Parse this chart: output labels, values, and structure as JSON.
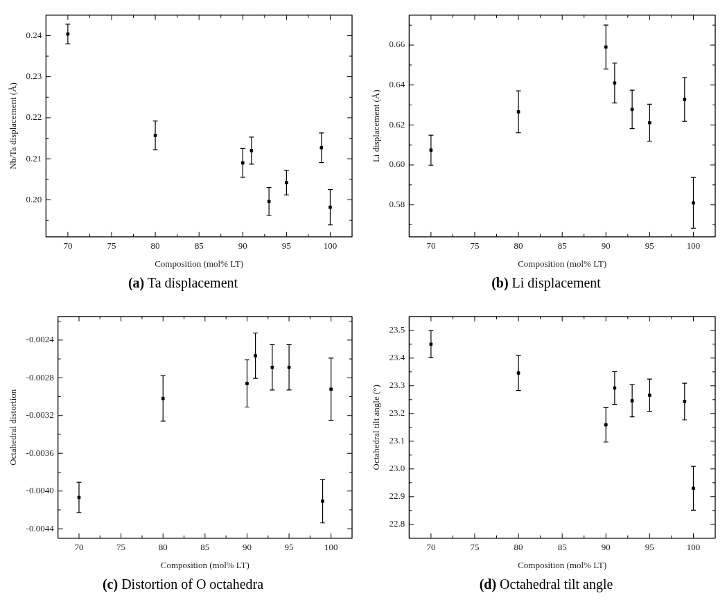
{
  "chart_data": [
    {
      "type": "scatter",
      "title": "(a) Ta displacement",
      "xlabel": "Composition (mol% LT)",
      "ylabel": "Nb/Ta displacement (Å)",
      "marker": "square",
      "x": [
        70,
        80,
        90,
        91,
        93,
        95,
        99,
        100
      ],
      "series": [
        {
          "color": "#000000",
          "values": [
            0.2404,
            0.2157,
            0.209,
            0.212,
            0.1996,
            0.2042,
            0.2127,
            0.1982
          ],
          "errors": [
            0.0024,
            0.0035,
            0.0035,
            0.0033,
            0.0034,
            0.003,
            0.0036,
            0.0043
          ]
        }
      ],
      "xlim": [
        67.5,
        102.5
      ],
      "xticks": [
        70,
        {
          "value": 72.5,
          "label": null
        },
        75,
        {
          "value": 77.5,
          "label": null
        },
        80,
        {
          "value": 82.5,
          "label": null
        },
        85,
        {
          "value": 87.5,
          "label": null
        },
        90,
        {
          "value": 92.5,
          "label": null
        },
        95,
        {
          "value": 97.5,
          "label": null
        },
        100
      ],
      "ylim": [
        0.191,
        0.245
      ],
      "yticks": [
        {
          "value": 0.195,
          "label": null
        },
        {
          "value": 0.2,
          "label": "0.20"
        },
        {
          "value": 0.205,
          "label": null
        },
        0.21,
        {
          "value": 0.215,
          "label": null
        },
        0.22,
        {
          "value": 0.225,
          "label": null
        },
        0.23,
        {
          "value": 0.235,
          "label": null
        },
        0.24
      ]
    },
    {
      "type": "scatter",
      "title": "(b) Li displacement",
      "xlabel": "Composition (mol% LT)",
      "ylabel": "Li displacement (Å)",
      "marker": "square",
      "x": [
        70,
        80,
        90,
        91,
        93,
        95,
        99,
        100
      ],
      "series": [
        {
          "color": "#000000",
          "values": [
            0.6074,
            0.6266,
            0.659,
            0.641,
            0.6278,
            0.6211,
            0.6328,
            0.581
          ],
          "errors": [
            0.0075,
            0.0105,
            0.011,
            0.01,
            0.0096,
            0.0093,
            0.011,
            0.0127
          ]
        }
      ],
      "xlim": [
        67.5,
        102.5
      ],
      "xticks": [
        70,
        {
          "value": 72.5,
          "label": null
        },
        75,
        {
          "value": 77.5,
          "label": null
        },
        80,
        {
          "value": 82.5,
          "label": null
        },
        85,
        {
          "value": 87.5,
          "label": null
        },
        90,
        {
          "value": 92.5,
          "label": null
        },
        95,
        {
          "value": 97.5,
          "label": null
        },
        100
      ],
      "ylim": [
        0.564,
        0.675
      ],
      "yticks": [
        {
          "value": 0.57,
          "label": null
        },
        0.58,
        {
          "value": 0.59,
          "label": null
        },
        {
          "value": 0.6,
          "label": "0.60"
        },
        {
          "value": 0.61,
          "label": null
        },
        0.62,
        {
          "value": 0.63,
          "label": null
        },
        0.64,
        {
          "value": 0.65,
          "label": null
        },
        0.66,
        {
          "value": 0.67,
          "label": null
        }
      ]
    },
    {
      "type": "scatter",
      "title": "(c) Distortion of O octahedra",
      "xlabel": "Composition (mol% LT)",
      "ylabel": "Octahedral distortion",
      "marker": "square",
      "x": [
        70,
        80,
        90,
        91,
        93,
        95,
        99,
        100
      ],
      "series": [
        {
          "color": "#000000",
          "values": [
            -0.004068,
            -0.003019,
            -0.00286,
            -0.002566,
            -0.002689,
            -0.002689,
            -0.004108,
            -0.002921
          ],
          "errors": [
            0.00016,
            0.00024,
            0.00025,
            0.00024,
            0.00024,
            0.00024,
            0.00023,
            0.00033
          ]
        }
      ],
      "xlim": [
        67.5,
        102.5
      ],
      "xticks": [
        70,
        {
          "value": 72.5,
          "label": null
        },
        75,
        {
          "value": 77.5,
          "label": null
        },
        80,
        {
          "value": 82.5,
          "label": null
        },
        85,
        {
          "value": 87.5,
          "label": null
        },
        90,
        {
          "value": 92.5,
          "label": null
        },
        95,
        {
          "value": 97.5,
          "label": null
        },
        100
      ],
      "ylim": [
        -0.0045,
        -0.00215
      ],
      "yticks": [
        -0.0044,
        {
          "value": -0.0042,
          "label": null
        },
        {
          "value": -0.004,
          "label": "-0.0040"
        },
        {
          "value": -0.0038,
          "label": null
        },
        -0.0036,
        {
          "value": -0.0034,
          "label": null
        },
        -0.0032,
        {
          "value": -0.003,
          "label": null
        },
        -0.0028,
        {
          "value": -0.0026,
          "label": null
        },
        -0.0024,
        {
          "value": -0.0022,
          "label": null
        }
      ]
    },
    {
      "type": "scatter",
      "title": "(d) Octahedral tilt angle",
      "xlabel": "Composition (mol% LT)",
      "ylabel": "Octahedral tilt angle (°)",
      "marker": "square",
      "x": [
        70,
        80,
        90,
        91,
        93,
        95,
        99,
        100
      ],
      "series": [
        {
          "color": "#000000",
          "values": [
            23.45,
            23.346,
            23.159,
            23.292,
            23.246,
            23.266,
            23.243,
            22.93
          ],
          "errors": [
            0.049,
            0.063,
            0.062,
            0.059,
            0.058,
            0.058,
            0.066,
            0.079
          ]
        }
      ],
      "xlim": [
        67.5,
        102.5
      ],
      "xticks": [
        70,
        {
          "value": 72.5,
          "label": null
        },
        75,
        {
          "value": 77.5,
          "label": null
        },
        80,
        {
          "value": 82.5,
          "label": null
        },
        85,
        {
          "value": 87.5,
          "label": null
        },
        90,
        {
          "value": 92.5,
          "label": null
        },
        95,
        {
          "value": 97.5,
          "label": null
        },
        100
      ],
      "ylim": [
        22.75,
        23.55
      ],
      "yticks": [
        22.8,
        {
          "value": 22.85,
          "label": null
        },
        22.9,
        {
          "value": 22.95,
          "label": null
        },
        {
          "value": 23,
          "label": "23.0"
        },
        {
          "value": 23.05,
          "label": null
        },
        23.1,
        {
          "value": 23.15,
          "label": null
        },
        23.2,
        {
          "value": 23.25,
          "label": null
        },
        23.3,
        {
          "value": 23.35,
          "label": null
        },
        23.4,
        {
          "value": 23.45,
          "label": null
        },
        23.5
      ]
    }
  ]
}
